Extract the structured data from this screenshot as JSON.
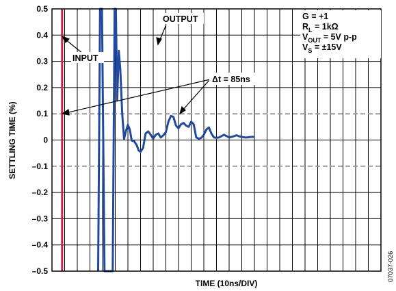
{
  "chart_data": {
    "type": "line",
    "title": "",
    "xlabel": "TIME (10ns/DIV)",
    "ylabel": "SETTLING TIME (%)",
    "ylim": [
      -0.5,
      0.5
    ],
    "yticks": [
      {
        "value": 0.5,
        "label": "0.5"
      },
      {
        "value": 0.4,
        "label": "0.4"
      },
      {
        "value": 0.3,
        "label": "0.3"
      },
      {
        "value": 0.2,
        "label": "0.2"
      },
      {
        "value": 0.1,
        "label": "0.1"
      },
      {
        "value": 0.0,
        "label": "0"
      },
      {
        "value": -0.1,
        "label": "–0.1"
      },
      {
        "value": -0.2,
        "label": "–0.2"
      },
      {
        "value": -0.3,
        "label": "–0.3"
      },
      {
        "value": -0.4,
        "label": "–0.4"
      },
      {
        "value": -0.5,
        "label": "–0.5"
      }
    ],
    "x_divisions": 26,
    "grid": true,
    "reference_lines": [
      0.1,
      -0.1
    ],
    "series": [
      {
        "name": "INPUT",
        "color": "#c8254a",
        "x_div": [
          0.8,
          0.8
        ],
        "values": [
          -0.5,
          0.5
        ]
      },
      {
        "name": "OUTPUT",
        "color": "#1f4aa0",
        "x_div": [
          3.65,
          3.8,
          3.95,
          4.15,
          4.8,
          4.95,
          5.05,
          5.15,
          5.28,
          5.4,
          5.55,
          5.7,
          5.85,
          6.0,
          6.15,
          6.3,
          6.5,
          6.7,
          6.85,
          7.0,
          7.2,
          7.4,
          7.6,
          7.8,
          8.0,
          8.2,
          8.4,
          8.6,
          8.8,
          9.0,
          9.2,
          9.4,
          9.6,
          9.8,
          10.0,
          10.2,
          10.4,
          10.6,
          10.8,
          11.0,
          11.2,
          11.4,
          11.6,
          11.8,
          12.0,
          12.2,
          12.4,
          12.6,
          12.8,
          13.0,
          13.2,
          13.4,
          13.6,
          13.8,
          14.0,
          14.2,
          14.4,
          14.6,
          14.8,
          15.0,
          15.2,
          15.4,
          15.6,
          15.8,
          16.0
        ],
        "values": [
          -0.5,
          0.5,
          0.5,
          -0.5,
          -0.5,
          0.5,
          0.5,
          0.15,
          0.34,
          0.27,
          0.1,
          0.005,
          0.035,
          0.058,
          0.04,
          -0.002,
          -0.005,
          -0.02,
          -0.04,
          -0.045,
          -0.03,
          0.025,
          0.033,
          0.02,
          0.005,
          0.02,
          0.025,
          0.01,
          0.018,
          0.03,
          0.07,
          0.092,
          0.088,
          0.055,
          0.045,
          0.06,
          0.065,
          0.055,
          0.05,
          0.07,
          0.06,
          0.01,
          0.005,
          0.008,
          0.02,
          0.04,
          0.048,
          0.025,
          0.01,
          0.008,
          0.01,
          0.015,
          0.02,
          0.015,
          0.01,
          0.012,
          0.015,
          0.018,
          0.014,
          0.012,
          0.01,
          0.01,
          0.011,
          0.012,
          0.012
        ]
      }
    ],
    "annotations": [
      {
        "text": "INPUT"
      },
      {
        "text": "OUTPUT"
      },
      {
        "text": "Δt = 85ns"
      }
    ],
    "conditions": [
      {
        "main": "G = +1",
        "sub": "",
        "rest": ""
      },
      {
        "main": "R",
        "sub": "L",
        "rest": " = 1kΩ"
      },
      {
        "main": "V",
        "sub": "OUT",
        "rest": " = 5V p-p"
      },
      {
        "main": "V",
        "sub": "S",
        "rest": " = ±15V"
      }
    ],
    "figure_id": "07037-026"
  }
}
